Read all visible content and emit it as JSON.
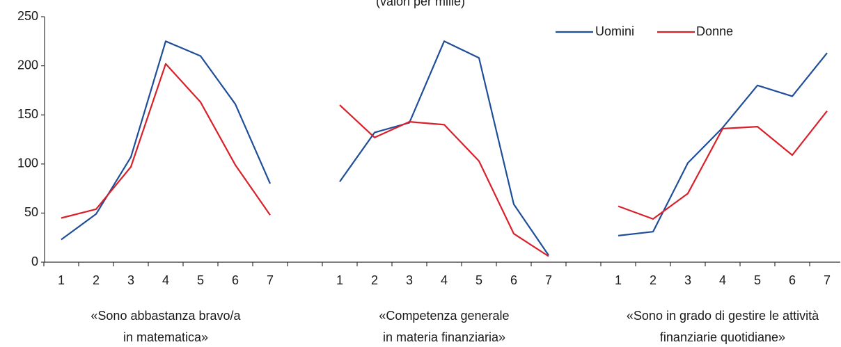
{
  "chart_data": {
    "type": "line",
    "title": "(valori per mille)",
    "ylim": [
      0,
      250
    ],
    "yticks": [
      0,
      50,
      100,
      150,
      200,
      250
    ],
    "x_ticks": [
      "1",
      "2",
      "3",
      "4",
      "5",
      "6",
      "7"
    ],
    "groups": [
      {
        "label_lines": [
          "«Sono abbastanza bravo/a",
          "in matematica»"
        ],
        "series": [
          {
            "name": "Uomini",
            "values": [
              23,
              49,
              107,
              225,
              210,
              161,
              80
            ]
          },
          {
            "name": "Donne",
            "values": [
              45,
              54,
              97,
              202,
              163,
              99,
              48
            ]
          }
        ]
      },
      {
        "label_lines": [
          "«Competenza generale",
          "in materia finanziaria»"
        ],
        "series": [
          {
            "name": "Uomini",
            "values": [
              82,
              132,
              142,
              225,
              208,
              59,
              7
            ]
          },
          {
            "name": "Donne",
            "values": [
              160,
              127,
              143,
              140,
              103,
              29,
              6
            ]
          }
        ]
      },
      {
        "label_lines": [
          "«Sono in grado di gestire le attività",
          "finanziarie quotidiane»"
        ],
        "series": [
          {
            "name": "Uomini",
            "values": [
              27,
              31,
              101,
              137,
              180,
              169,
              213
            ]
          },
          {
            "name": "Donne",
            "values": [
              57,
              44,
              70,
              136,
              138,
              109,
              154
            ]
          }
        ]
      }
    ],
    "legend": {
      "placement": "top-right",
      "entries": [
        {
          "name": "Uomini",
          "color": "#1f4e99"
        },
        {
          "name": "Donne",
          "color": "#d9202a"
        }
      ]
    },
    "grid": false
  },
  "colors": {
    "Uomini": "#1f4e99",
    "Donne": "#d9202a",
    "axis": "#333333"
  }
}
